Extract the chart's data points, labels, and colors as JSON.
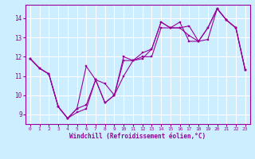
{
  "xlabel": "Windchill (Refroidissement éolien,°C)",
  "background_color": "#cceeff",
  "line_color": "#990099",
  "grid_color": "#ffffff",
  "xlim": [
    -0.5,
    23.5
  ],
  "ylim": [
    8.5,
    14.7
  ],
  "xticks": [
    0,
    1,
    2,
    3,
    4,
    5,
    6,
    7,
    8,
    9,
    10,
    11,
    12,
    13,
    14,
    15,
    16,
    17,
    18,
    19,
    20,
    21,
    22,
    23
  ],
  "yticks": [
    9,
    10,
    11,
    12,
    13,
    14
  ],
  "series1_x": [
    0,
    1,
    2,
    3,
    4,
    5,
    6,
    7,
    8,
    9,
    10,
    11,
    12,
    13,
    14,
    15,
    16,
    17,
    18,
    19,
    20,
    21,
    22,
    23
  ],
  "series1_y": [
    11.9,
    11.4,
    11.1,
    9.4,
    8.8,
    9.1,
    9.3,
    10.8,
    9.6,
    10.0,
    11.0,
    11.8,
    11.9,
    12.4,
    13.8,
    13.5,
    13.5,
    13.6,
    12.8,
    13.5,
    14.5,
    13.9,
    13.5,
    11.3
  ],
  "series2_x": [
    0,
    1,
    2,
    3,
    4,
    5,
    6,
    7,
    8,
    9,
    10,
    11,
    12,
    13,
    14,
    15,
    16,
    17,
    18,
    19,
    20,
    21,
    22,
    23
  ],
  "series2_y": [
    11.9,
    11.4,
    11.1,
    9.4,
    8.8,
    9.3,
    11.5,
    10.8,
    10.6,
    10.0,
    11.8,
    11.8,
    12.0,
    12.0,
    13.5,
    13.5,
    13.8,
    12.8,
    12.8,
    12.9,
    14.5,
    13.9,
    13.5,
    11.3
  ],
  "series3_x": [
    0,
    1,
    2,
    3,
    4,
    5,
    6,
    7,
    8,
    9,
    10,
    11,
    12,
    13,
    14,
    15,
    16,
    17,
    18,
    19,
    20,
    21,
    22,
    23
  ],
  "series3_y": [
    11.9,
    11.4,
    11.1,
    9.4,
    8.8,
    9.3,
    9.5,
    10.8,
    9.6,
    10.0,
    12.0,
    11.8,
    12.2,
    12.4,
    13.8,
    13.5,
    13.5,
    13.1,
    12.8,
    13.5,
    14.5,
    13.9,
    13.5,
    11.3
  ]
}
